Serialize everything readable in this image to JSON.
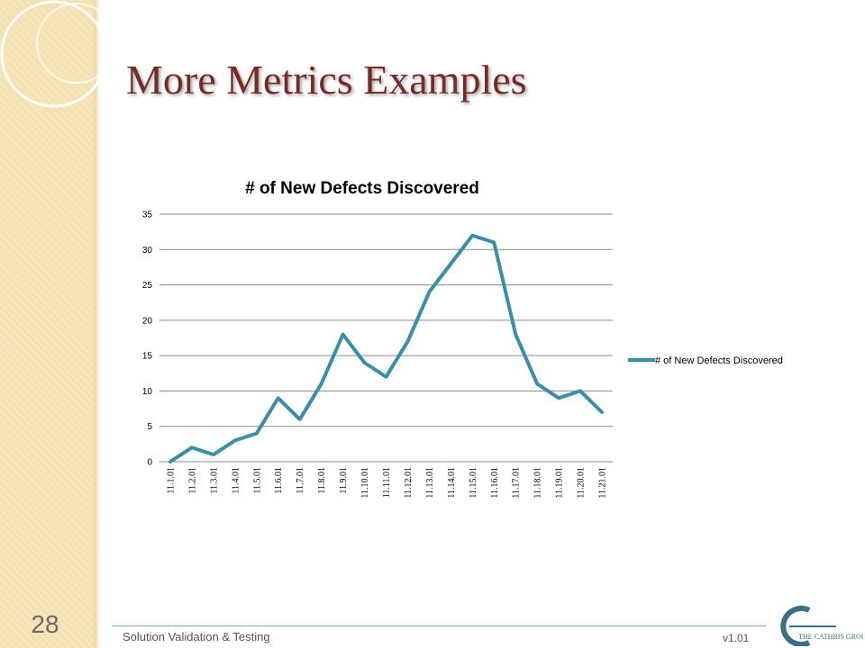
{
  "slide": {
    "title": "More Metrics Examples",
    "number": "28",
    "footer_text": "Solution Validation & Testing",
    "version": "v1.01",
    "logo_text": "The Cathris Group"
  },
  "colors": {
    "title": "#7a2a26",
    "series": "#3a8fa8",
    "side_band": "#f3e1b2",
    "logo_mark": "#3a6f86"
  },
  "chart_data": {
    "type": "line",
    "title": "# of New Defects Discovered",
    "categories": [
      "11.1.01",
      "11.2.01",
      "11.3.01",
      "11.4.01",
      "11.5.01",
      "11.6.01",
      "11.7.01",
      "11.8.01",
      "11.9.01",
      "11.10.01",
      "11.11.01",
      "11.12.01",
      "11.13.01",
      "11.14.01",
      "11.15.01",
      "11.16.01",
      "11.17.01",
      "11.18.01",
      "11.19.01",
      "11.20.01",
      "11.21.01"
    ],
    "series": [
      {
        "name": "# of New Defects Discovered",
        "values": [
          0,
          2,
          1,
          3,
          4,
          9,
          6,
          11,
          18,
          14,
          12,
          17,
          24,
          28,
          32,
          31,
          18,
          11,
          9,
          10,
          7
        ]
      }
    ],
    "yticks": [
      0,
      5,
      10,
      15,
      20,
      25,
      30,
      35
    ],
    "ylim": [
      0,
      35
    ],
    "grid": true,
    "legend_position": "right"
  }
}
